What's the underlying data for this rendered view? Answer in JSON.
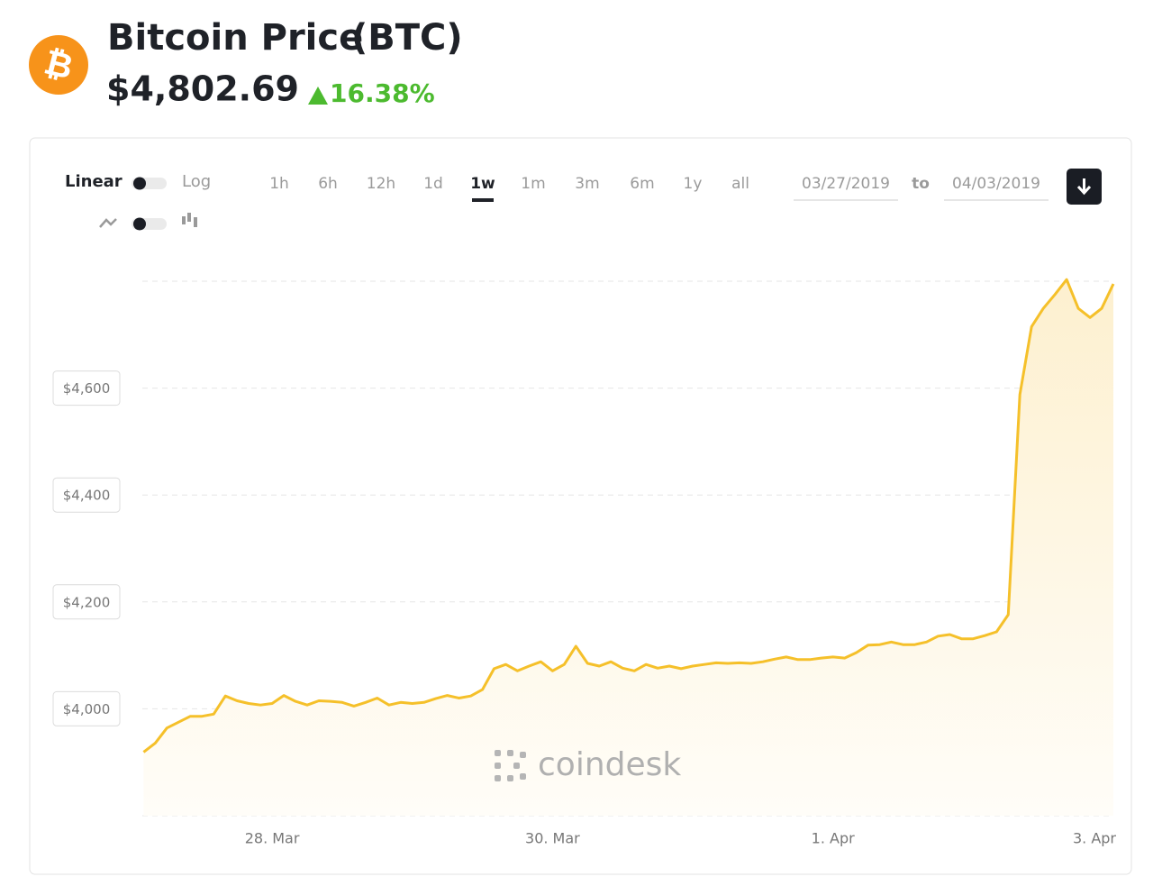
{
  "header": {
    "title": "Bitcoin Price",
    "ticker": "(BTC)",
    "price": "$4,802.69",
    "change": "16.38%"
  },
  "controls": {
    "scale_options": [
      "Linear",
      "Log"
    ],
    "ranges": [
      {
        "label": "1h",
        "selected": false
      },
      {
        "label": "6h",
        "selected": false
      },
      {
        "label": "12h",
        "selected": false
      },
      {
        "label": "1d",
        "selected": false
      },
      {
        "label": "1w",
        "selected": true
      },
      {
        "label": "1m",
        "selected": false
      },
      {
        "label": "3m",
        "selected": false
      },
      {
        "label": "6m",
        "selected": false
      },
      {
        "label": "1y",
        "selected": false
      },
      {
        "label": "all",
        "selected": false
      }
    ],
    "date_from": "03/27/2019",
    "date_separator": "to",
    "date_to": "04/03/2019"
  },
  "chart_data": {
    "type": "line",
    "color": "#f5c02a",
    "watermark": "coindesk",
    "categories": [
      null,
      null,
      null,
      null,
      null,
      null,
      null,
      null,
      null,
      null,
      null,
      "28. Mar",
      null,
      null,
      null,
      null,
      null,
      null,
      null,
      null,
      null,
      null,
      null,
      null,
      null,
      null,
      null,
      null,
      null,
      null,
      null,
      null,
      null,
      null,
      null,
      "30. Mar",
      null,
      null,
      null,
      null,
      null,
      null,
      null,
      null,
      null,
      null,
      null,
      null,
      null,
      null,
      null,
      null,
      null,
      null,
      null,
      null,
      null,
      null,
      null,
      "1. Apr",
      null,
      null,
      null,
      null,
      null,
      null,
      null,
      null,
      null,
      null,
      null,
      null,
      null,
      null,
      null,
      null,
      null,
      null,
      null,
      null,
      null,
      null,
      null,
      "3. Apr"
    ],
    "values": [
      3919,
      3936,
      3964,
      3975,
      3986,
      3986,
      3990,
      4024,
      4015,
      4010,
      4007,
      4010,
      4025,
      4014,
      4007,
      4015,
      4014,
      4012,
      4005,
      4012,
      4020,
      4007,
      4012,
      4010,
      4012,
      4019,
      4025,
      4020,
      4024,
      4036,
      4075,
      4083,
      4071,
      4080,
      4088,
      4071,
      4083,
      4117,
      4085,
      4080,
      4088,
      4076,
      4071,
      4083,
      4076,
      4080,
      4075,
      4080,
      4083,
      4086,
      4085,
      4086,
      4085,
      4088,
      4093,
      4097,
      4092,
      4092,
      4095,
      4097,
      4095,
      4105,
      4119,
      4120,
      4125,
      4120,
      4120,
      4125,
      4136,
      4139,
      4131,
      4131,
      4137,
      4144,
      4176,
      4588,
      4715,
      4749,
      4775,
      4803,
      4749,
      4732,
      4749,
      4795
    ],
    "ylim": [
      3800,
      4800
    ],
    "yticks": [
      {
        "value": 4000,
        "label": "$4,000"
      },
      {
        "value": 4200,
        "label": "$4,200"
      },
      {
        "value": 4400,
        "label": "$4,400"
      },
      {
        "value": 4600,
        "label": "$4,600"
      }
    ],
    "grid": true
  }
}
